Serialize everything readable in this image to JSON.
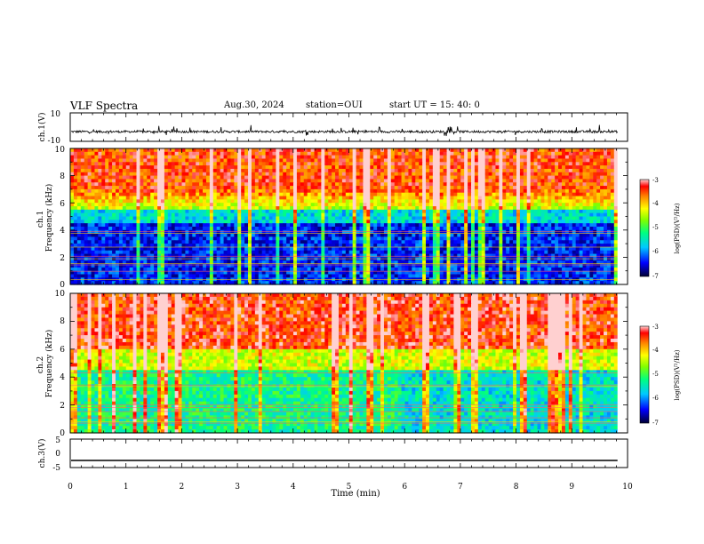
{
  "header": {
    "title": "VLF Spectra",
    "date": "Aug.30, 2024",
    "station": "station=OUI",
    "start": "start UT =  15: 40: 0"
  },
  "chart_data": [
    {
      "panel": "ch1-waveform",
      "type": "line",
      "ylabel": "ch.1(V)",
      "ylim": [
        -10,
        10
      ],
      "yticks": [
        "10",
        "-10"
      ],
      "xlim": [
        0,
        10
      ],
      "baseline": -3.2,
      "duration_min": 9.82
    },
    {
      "panel": "ch1-spectrogram",
      "type": "heatmap",
      "ylabel": "ch.1\nFrequency (kHz)",
      "ylim": [
        0,
        10
      ],
      "yticks": [
        "0",
        "2",
        "4",
        "6",
        "8",
        "10"
      ],
      "xlim": [
        0,
        10
      ],
      "colorbar": {
        "label": "log(PSD)(V²/Hz)",
        "range": [
          -7,
          -3
        ],
        "ticks": [
          "-3",
          "-4",
          "-5",
          "-6",
          "-7"
        ]
      }
    },
    {
      "panel": "ch2-spectrogram",
      "type": "heatmap",
      "ylabel": "ch.2\nFrequency (kHz)",
      "ylim": [
        0,
        10
      ],
      "yticks": [
        "0",
        "2",
        "4",
        "6",
        "8",
        "10"
      ],
      "xlim": [
        0,
        10
      ],
      "colorbar": {
        "label": "log(PSD)(V²/Hz)",
        "range": [
          -7,
          -3
        ],
        "ticks": [
          "-3",
          "-4",
          "-5",
          "-6",
          "-7"
        ]
      }
    },
    {
      "panel": "ch3-waveform",
      "type": "line",
      "ylabel": "ch.3(V)",
      "ylim": [
        -5,
        5
      ],
      "yticks": [
        "5",
        "0",
        "-5"
      ],
      "xlim": [
        0,
        10
      ],
      "baseline": -2.5,
      "duration_min": 9.82
    }
  ],
  "xaxis": {
    "label": "Time (min)",
    "ticks": [
      "0",
      "1",
      "2",
      "3",
      "4",
      "5",
      "6",
      "7",
      "8",
      "9",
      "10"
    ]
  }
}
